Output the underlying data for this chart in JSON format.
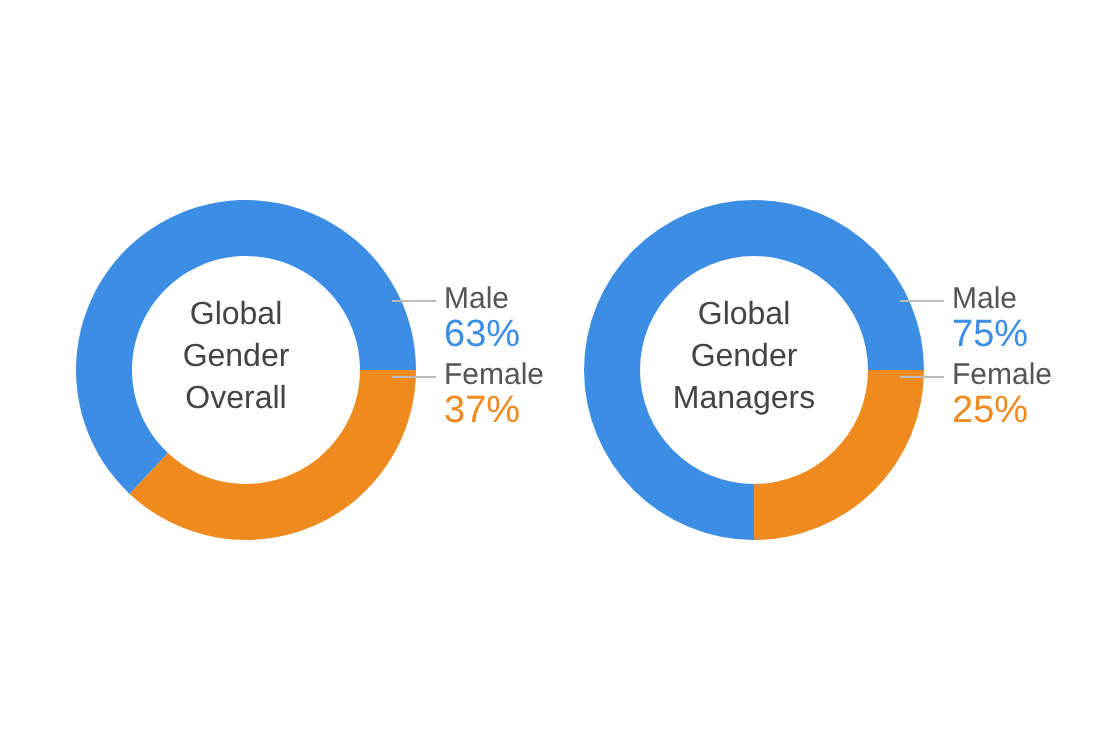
{
  "chart_data": [
    {
      "type": "donut",
      "title": "Global Gender Overall",
      "categories": [
        "Male",
        "Female"
      ],
      "values": [
        63,
        37
      ],
      "colors": [
        "#3b8ee3",
        "#ee8a1e"
      ],
      "value_labels": [
        "63%",
        "37%"
      ]
    },
    {
      "type": "donut",
      "title": "Global Gender Managers",
      "categories": [
        "Male",
        "Female"
      ],
      "values": [
        75,
        25
      ],
      "colors": [
        "#3b8ee3",
        "#ee8a1e"
      ],
      "value_labels": [
        "75%",
        "25%"
      ]
    }
  ]
}
